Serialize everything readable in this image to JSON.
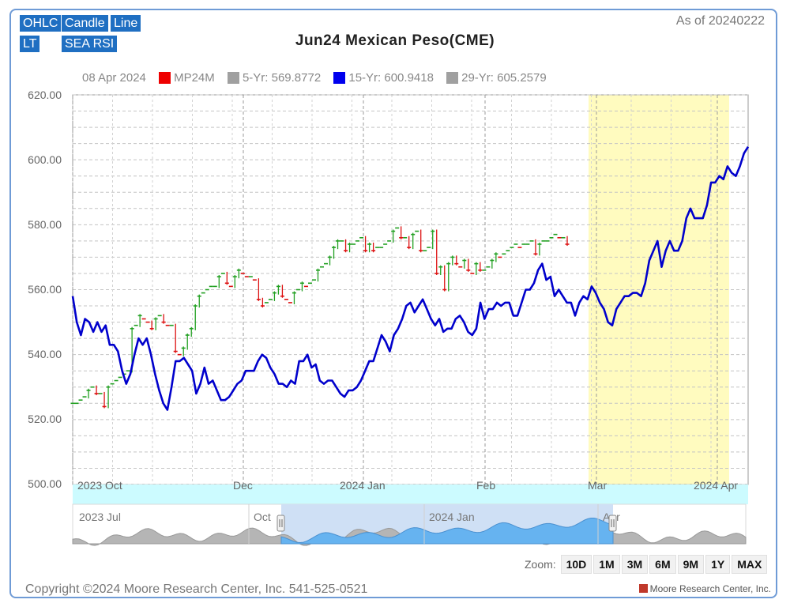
{
  "toolbar": {
    "buttons": [
      "OHLC",
      "Candle",
      "Line",
      "LT",
      "SEA RSI"
    ]
  },
  "header": {
    "title": "Jun24 Mexican Peso(CME)",
    "as_of": "As of 20240222"
  },
  "legend": {
    "date": "08 Apr 2024",
    "items": [
      {
        "label": "MP24M",
        "color": "#ee0000"
      },
      {
        "label": "5-Yr: 569.8772",
        "color": "#a0a0a0"
      },
      {
        "label": "15-Yr: 600.9418",
        "color": "#0000ee"
      },
      {
        "label": "29-Yr: 605.2579",
        "color": "#a0a0a0"
      }
    ]
  },
  "chart_data": {
    "type": "line",
    "title": "Jun24 Mexican Peso(CME)",
    "ylim": [
      500,
      620
    ],
    "y_ticks": [
      "620.00",
      "600.00",
      "580.00",
      "560.00",
      "540.00",
      "520.00",
      "500.00"
    ],
    "x_tick_labels": [
      "2023 Oct",
      "Dec",
      "2024 Jan",
      "Feb",
      "Mar",
      "2024 Apr"
    ],
    "grid": true,
    "highlight_band": {
      "from": "Mar 1",
      "to": "Apr 8",
      "color": "#fffbbf"
    },
    "series": [
      {
        "name": "15-Yr: 600.9418",
        "color": "#0000cc",
        "values": [
          558,
          550,
          546,
          551,
          550,
          547,
          550,
          547,
          549,
          543,
          543,
          541,
          535,
          531,
          534,
          540,
          545,
          543,
          545,
          540,
          534,
          529,
          525,
          523,
          530,
          538,
          538,
          539,
          537,
          535,
          528,
          531,
          536,
          531,
          532,
          529,
          526,
          526,
          527,
          529,
          531,
          532,
          535,
          535,
          535,
          538,
          540,
          539,
          536,
          534,
          531,
          531,
          530,
          532,
          531,
          538,
          538,
          540,
          536,
          537,
          532,
          531,
          532,
          532,
          530,
          528,
          527,
          529,
          529,
          530,
          532,
          535,
          538,
          538,
          542,
          546,
          544,
          541,
          546,
          548,
          551,
          555,
          556,
          553,
          555,
          557,
          554,
          551,
          549,
          551,
          547,
          548,
          548,
          551,
          552,
          550,
          547,
          546,
          548,
          556,
          551,
          554,
          554,
          556,
          555,
          556,
          556,
          552,
          552,
          556,
          560,
          560,
          562,
          566,
          568,
          563,
          564,
          558,
          560,
          558,
          556,
          556,
          552,
          556,
          558,
          557,
          561,
          559,
          556,
          554,
          550,
          549,
          554,
          556,
          558,
          558,
          559,
          559,
          558,
          562,
          569,
          572,
          575,
          567,
          572,
          575,
          572,
          572,
          575,
          582,
          585,
          582,
          582,
          582,
          586,
          593,
          593,
          595,
          594,
          598,
          596,
          595,
          598,
          602,
          604
        ]
      },
      {
        "name": "MP24M",
        "color": "#ee0000",
        "values": [
          525,
          525,
          526,
          527,
          529,
          530,
          528,
          528,
          524,
          530,
          531,
          532,
          533,
          534,
          535,
          548,
          549,
          552,
          551,
          550,
          548,
          551,
          552,
          550,
          549,
          549,
          541,
          540,
          542,
          546,
          548,
          555,
          558,
          559,
          560,
          561,
          561,
          564,
          565,
          562,
          561,
          564,
          566,
          565,
          564,
          564,
          563,
          557,
          555,
          556,
          557,
          559,
          561,
          558,
          557,
          556,
          559,
          560,
          562,
          561,
          562,
          563,
          566,
          567,
          568,
          570,
          573,
          575,
          575,
          572,
          574,
          574,
          575,
          576,
          572,
          574,
          572,
          573,
          573,
          574,
          575,
          578,
          579,
          576,
          576,
          573,
          577,
          578,
          572,
          572,
          573,
          578,
          565,
          567,
          560,
          568,
          570,
          568,
          567,
          569,
          566,
          565,
          568,
          566,
          566,
          567,
          569,
          571,
          570,
          571,
          572,
          573,
          574,
          573,
          574,
          574,
          575,
          571,
          574,
          575,
          575,
          576,
          577,
          576,
          576,
          574
        ]
      }
    ]
  },
  "navigator": {
    "labels": [
      "2023 Jul",
      "Oct",
      "2024 Jan",
      "Apr"
    ]
  },
  "zoom": {
    "label": "Zoom:",
    "buttons": [
      "10D",
      "1M",
      "3M",
      "6M",
      "9M",
      "1Y",
      "MAX"
    ]
  },
  "footer": {
    "copyright": "Copyright ©2024 Moore Research Center, Inc. 541-525-0521",
    "brand": "Moore Research Center, Inc."
  }
}
